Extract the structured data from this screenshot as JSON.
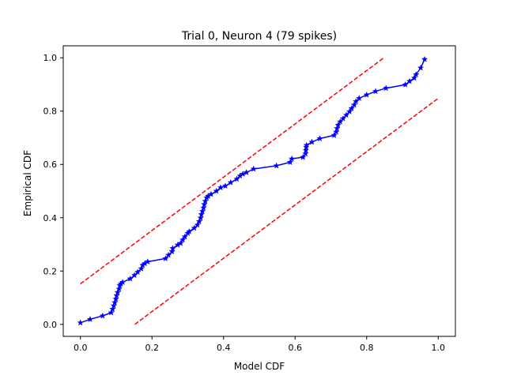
{
  "chart_data": {
    "type": "line",
    "title": "Trial 0, Neuron 4 (79 spikes)",
    "xlabel": "Model CDF",
    "ylabel": "Empirical CDF",
    "xlim": [
      -0.048,
      1.048
    ],
    "ylim": [
      -0.045,
      1.045
    ],
    "xticks": [
      0.0,
      0.2,
      0.4,
      0.6,
      0.8,
      1.0
    ],
    "xtick_labels": [
      "0.0",
      "0.2",
      "0.4",
      "0.6",
      "0.8",
      "1.0"
    ],
    "yticks": [
      0.0,
      0.2,
      0.4,
      0.6,
      0.8,
      1.0
    ],
    "ytick_labels": [
      "0.0",
      "0.2",
      "0.4",
      "0.6",
      "0.8",
      "1.0"
    ],
    "grid": false,
    "legend": "none",
    "colors": {
      "series": "#0000ff",
      "bounds": "#ff0000"
    },
    "series": [
      {
        "style": "solid line with star markers",
        "x": [
          0.0,
          0.027,
          0.062,
          0.086,
          0.09,
          0.093,
          0.096,
          0.099,
          0.101,
          0.104,
          0.108,
          0.11,
          0.113,
          0.118,
          0.139,
          0.151,
          0.16,
          0.17,
          0.174,
          0.18,
          0.188,
          0.238,
          0.246,
          0.256,
          0.258,
          0.272,
          0.28,
          0.286,
          0.292,
          0.3,
          0.304,
          0.318,
          0.327,
          0.332,
          0.336,
          0.338,
          0.341,
          0.344,
          0.346,
          0.349,
          0.353,
          0.357,
          0.365,
          0.38,
          0.392,
          0.405,
          0.42,
          0.437,
          0.446,
          0.454,
          0.464,
          0.484,
          0.548,
          0.586,
          0.591,
          0.622,
          0.629,
          0.63,
          0.631,
          0.632,
          0.647,
          0.669,
          0.709,
          0.715,
          0.717,
          0.72,
          0.726,
          0.734,
          0.743,
          0.752,
          0.758,
          0.765,
          0.77,
          0.779,
          0.8,
          0.825,
          0.854,
          0.908,
          0.92,
          0.933,
          0.938,
          0.951,
          0.962
        ],
        "y": [
          0.006,
          0.019,
          0.032,
          0.044,
          0.057,
          0.07,
          0.082,
          0.095,
          0.108,
          0.12,
          0.133,
          0.146,
          0.152,
          0.158,
          0.171,
          0.184,
          0.196,
          0.209,
          0.222,
          0.228,
          0.235,
          0.247,
          0.26,
          0.273,
          0.285,
          0.298,
          0.304,
          0.317,
          0.329,
          0.342,
          0.348,
          0.361,
          0.373,
          0.386,
          0.399,
          0.412,
          0.424,
          0.437,
          0.45,
          0.462,
          0.475,
          0.481,
          0.488,
          0.5,
          0.513,
          0.519,
          0.532,
          0.545,
          0.557,
          0.564,
          0.57,
          0.583,
          0.595,
          0.608,
          0.621,
          0.627,
          0.64,
          0.653,
          0.665,
          0.672,
          0.684,
          0.697,
          0.709,
          0.722,
          0.735,
          0.747,
          0.76,
          0.772,
          0.785,
          0.798,
          0.81,
          0.823,
          0.836,
          0.848,
          0.861,
          0.874,
          0.886,
          0.899,
          0.912,
          0.924,
          0.937,
          0.962,
          0.994
        ]
      }
    ],
    "bounds": [
      {
        "style": "dashed",
        "x": [
          0.0,
          0.848
        ],
        "y": [
          0.152,
          1.0
        ]
      },
      {
        "style": "dashed",
        "x": [
          0.152,
          1.0
        ],
        "y": [
          0.0,
          0.848
        ]
      }
    ]
  }
}
